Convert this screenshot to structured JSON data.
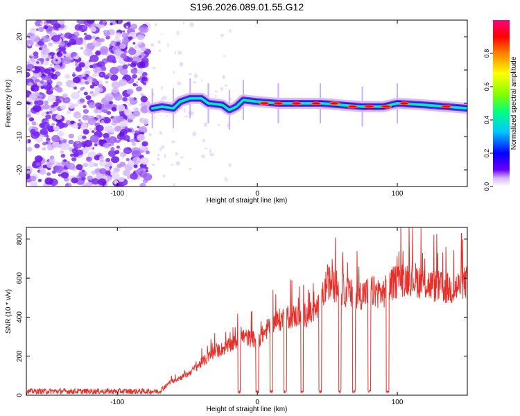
{
  "title": "S196.2026.089.01.55.G12",
  "chart_data": [
    {
      "type": "heatmap",
      "title": "S196.2026.089.01.55.G12",
      "xlabel": "Height of straight line (km)",
      "ylabel": "Frequency (Hz)",
      "xlim": [
        -165,
        150
      ],
      "ylim": [
        -25,
        25
      ],
      "xticks": [
        -100,
        0,
        100
      ],
      "yticks": [
        -20,
        -10,
        0,
        10,
        20
      ],
      "colorbar": {
        "label": "Normalized spectral amplitude",
        "range": [
          0,
          1
        ],
        "ticks": [
          0.0,
          0.2,
          0.4,
          0.6,
          0.8
        ],
        "tick_labels": [
          "0.0",
          "0.2",
          "0.4",
          "0.6",
          "0.8"
        ],
        "colors": [
          "#ffffff",
          "#6a00ff",
          "#0000ff",
          "#00c8ff",
          "#00ff80",
          "#80ff00",
          "#ffff00",
          "#ff8000",
          "#ff0000",
          "#ff0080"
        ]
      },
      "noise_region_x": [
        -165,
        -78
      ],
      "signal_start_x": -78,
      "ridge_points": [
        {
          "x": -75,
          "f": -1.5
        },
        {
          "x": -68,
          "f": -1.0
        },
        {
          "x": -60,
          "f": -1.5
        },
        {
          "x": -55,
          "f": 0.5
        },
        {
          "x": -48,
          "f": 1.5
        },
        {
          "x": -40,
          "f": 1.5
        },
        {
          "x": -35,
          "f": 0.0
        },
        {
          "x": -25,
          "f": -0.5
        },
        {
          "x": -20,
          "f": -2.0
        },
        {
          "x": -15,
          "f": -1.0
        },
        {
          "x": -10,
          "f": 1.0
        },
        {
          "x": 0,
          "f": 0.5
        },
        {
          "x": 15,
          "f": 0.0
        },
        {
          "x": 30,
          "f": 0.0
        },
        {
          "x": 45,
          "f": 0.0
        },
        {
          "x": 60,
          "f": -0.5
        },
        {
          "x": 75,
          "f": -1.0
        },
        {
          "x": 90,
          "f": -1.0
        },
        {
          "x": 100,
          "f": 0.0
        },
        {
          "x": 120,
          "f": -0.5
        },
        {
          "x": 150,
          "f": -1.5
        }
      ],
      "hot_spots": [
        {
          "x": 5,
          "f": 0.0
        },
        {
          "x": 15,
          "f": 0.0
        },
        {
          "x": 28,
          "f": 0.0
        },
        {
          "x": 42,
          "f": 0.0
        },
        {
          "x": 55,
          "f": 0.0
        },
        {
          "x": 68,
          "f": -1.0
        },
        {
          "x": 80,
          "f": -1.0
        },
        {
          "x": 92,
          "f": -1.0
        },
        {
          "x": 105,
          "f": 0.0
        },
        {
          "x": 135,
          "f": -1.0
        }
      ]
    },
    {
      "type": "line",
      "xlabel": "Height of straight line (km)",
      "ylabel": "SNR (10 * v/v)",
      "xlim": [
        -165,
        150
      ],
      "ylim": [
        0,
        860
      ],
      "xticks": [
        -100,
        0,
        100
      ],
      "yticks": [
        0,
        200,
        400,
        600,
        800
      ],
      "series": [
        {
          "name": "SNR",
          "color": "#e8302a",
          "envelope": [
            {
              "x": -165,
              "y": 20
            },
            {
              "x": -100,
              "y": 20
            },
            {
              "x": -70,
              "y": 20
            },
            {
              "x": -62,
              "y": 70
            },
            {
              "x": -50,
              "y": 110
            },
            {
              "x": -40,
              "y": 170
            },
            {
              "x": -30,
              "y": 230
            },
            {
              "x": -20,
              "y": 260
            },
            {
              "x": -10,
              "y": 310
            },
            {
              "x": 0,
              "y": 290
            },
            {
              "x": 5,
              "y": 330
            },
            {
              "x": 10,
              "y": 380
            },
            {
              "x": 20,
              "y": 410
            },
            {
              "x": 30,
              "y": 420
            },
            {
              "x": 40,
              "y": 430
            },
            {
              "x": 45,
              "y": 480
            },
            {
              "x": 50,
              "y": 600
            },
            {
              "x": 60,
              "y": 560
            },
            {
              "x": 70,
              "y": 520
            },
            {
              "x": 80,
              "y": 550
            },
            {
              "x": 90,
              "y": 540
            },
            {
              "x": 100,
              "y": 610
            },
            {
              "x": 110,
              "y": 620
            },
            {
              "x": 120,
              "y": 590
            },
            {
              "x": 130,
              "y": 570
            },
            {
              "x": 140,
              "y": 560
            },
            {
              "x": 150,
              "y": 600
            }
          ],
          "dropouts": [
            -13,
            0,
            10,
            20,
            32,
            45,
            59,
            69,
            80,
            93
          ]
        }
      ]
    }
  ]
}
